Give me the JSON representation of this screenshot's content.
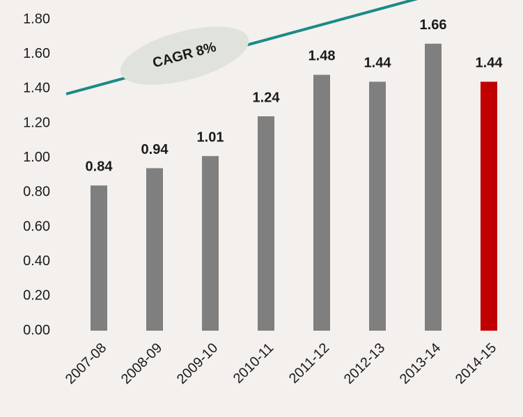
{
  "chart_data": {
    "type": "bar",
    "annotation": "CAGR 8%",
    "categories": [
      "2007-08",
      "2008-09",
      "2009-10",
      "2010-11",
      "2011-12",
      "2012-13",
      "2013-14",
      "2014-15"
    ],
    "values": [
      0.84,
      0.94,
      1.01,
      1.24,
      1.48,
      1.44,
      1.66,
      1.44
    ],
    "colors": [
      "#7f7f7f",
      "#7f7f7f",
      "#7f7f7f",
      "#7f7f7f",
      "#7f7f7f",
      "#7f7f7f",
      "#7f7f7f",
      "#c00000"
    ],
    "ylim": [
      0,
      1.8
    ],
    "yticks": [
      {
        "value": 0,
        "label": "0.00"
      },
      {
        "value": 0.2,
        "label": "0.20"
      },
      {
        "value": 0.4,
        "label": "0.40"
      },
      {
        "value": 0.6,
        "label": "0.60"
      },
      {
        "value": 0.8,
        "label": "0.80"
      },
      {
        "value": 1,
        "label": "1.00"
      },
      {
        "value": 1.2,
        "label": "1.20"
      },
      {
        "value": 1.4,
        "label": "1.40"
      },
      {
        "value": 1.6,
        "label": "1.60"
      },
      {
        "value": 1.8,
        "label": "1.80"
      }
    ],
    "grid": false
  }
}
